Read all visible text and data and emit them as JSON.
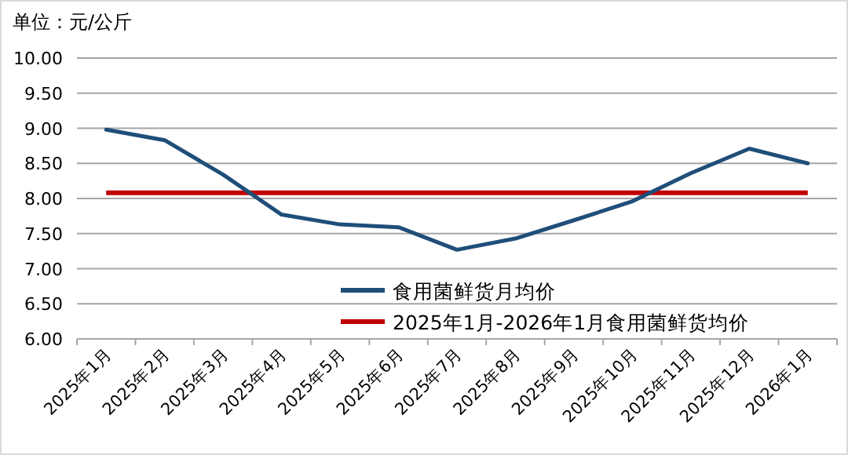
{
  "chart_data": {
    "type": "line",
    "ylabel": "单位：元/公斤",
    "categories": [
      "2025年1月",
      "2025年2月",
      "2025年3月",
      "2025年4月",
      "2025年5月",
      "2025年6月",
      "2025年7月",
      "2025年8月",
      "2025年9月",
      "2025年10月",
      "2025年11月",
      "2025年12月",
      "2026年1月"
    ],
    "series": [
      {
        "name": "食用菌鲜货月均价",
        "color": "#1f4e79",
        "values": [
          8.98,
          8.83,
          8.34,
          7.77,
          7.63,
          7.59,
          7.27,
          7.43,
          7.69,
          7.96,
          8.36,
          8.71,
          8.5
        ]
      }
    ],
    "ref_lines": [
      {
        "axis": "y",
        "value": 8.08,
        "label": "2025年1月-2026年1月食用菌鲜货均价",
        "color": "#c00000"
      }
    ],
    "ylim": [
      6,
      10
    ],
    "yticks": [
      {
        "value": 6,
        "label": "6.00"
      },
      {
        "value": 6.5,
        "label": "6.50"
      },
      {
        "value": 7,
        "label": "7.00"
      },
      {
        "value": 7.5,
        "label": "7.50"
      },
      {
        "value": 8,
        "label": "8.00"
      },
      {
        "value": 8.5,
        "label": "8.50"
      },
      {
        "value": 9,
        "label": "9.00"
      },
      {
        "value": 9.5,
        "label": "9.50"
      },
      {
        "value": 10,
        "label": "10.00"
      }
    ],
    "grid": "y",
    "legend": "bottom"
  }
}
